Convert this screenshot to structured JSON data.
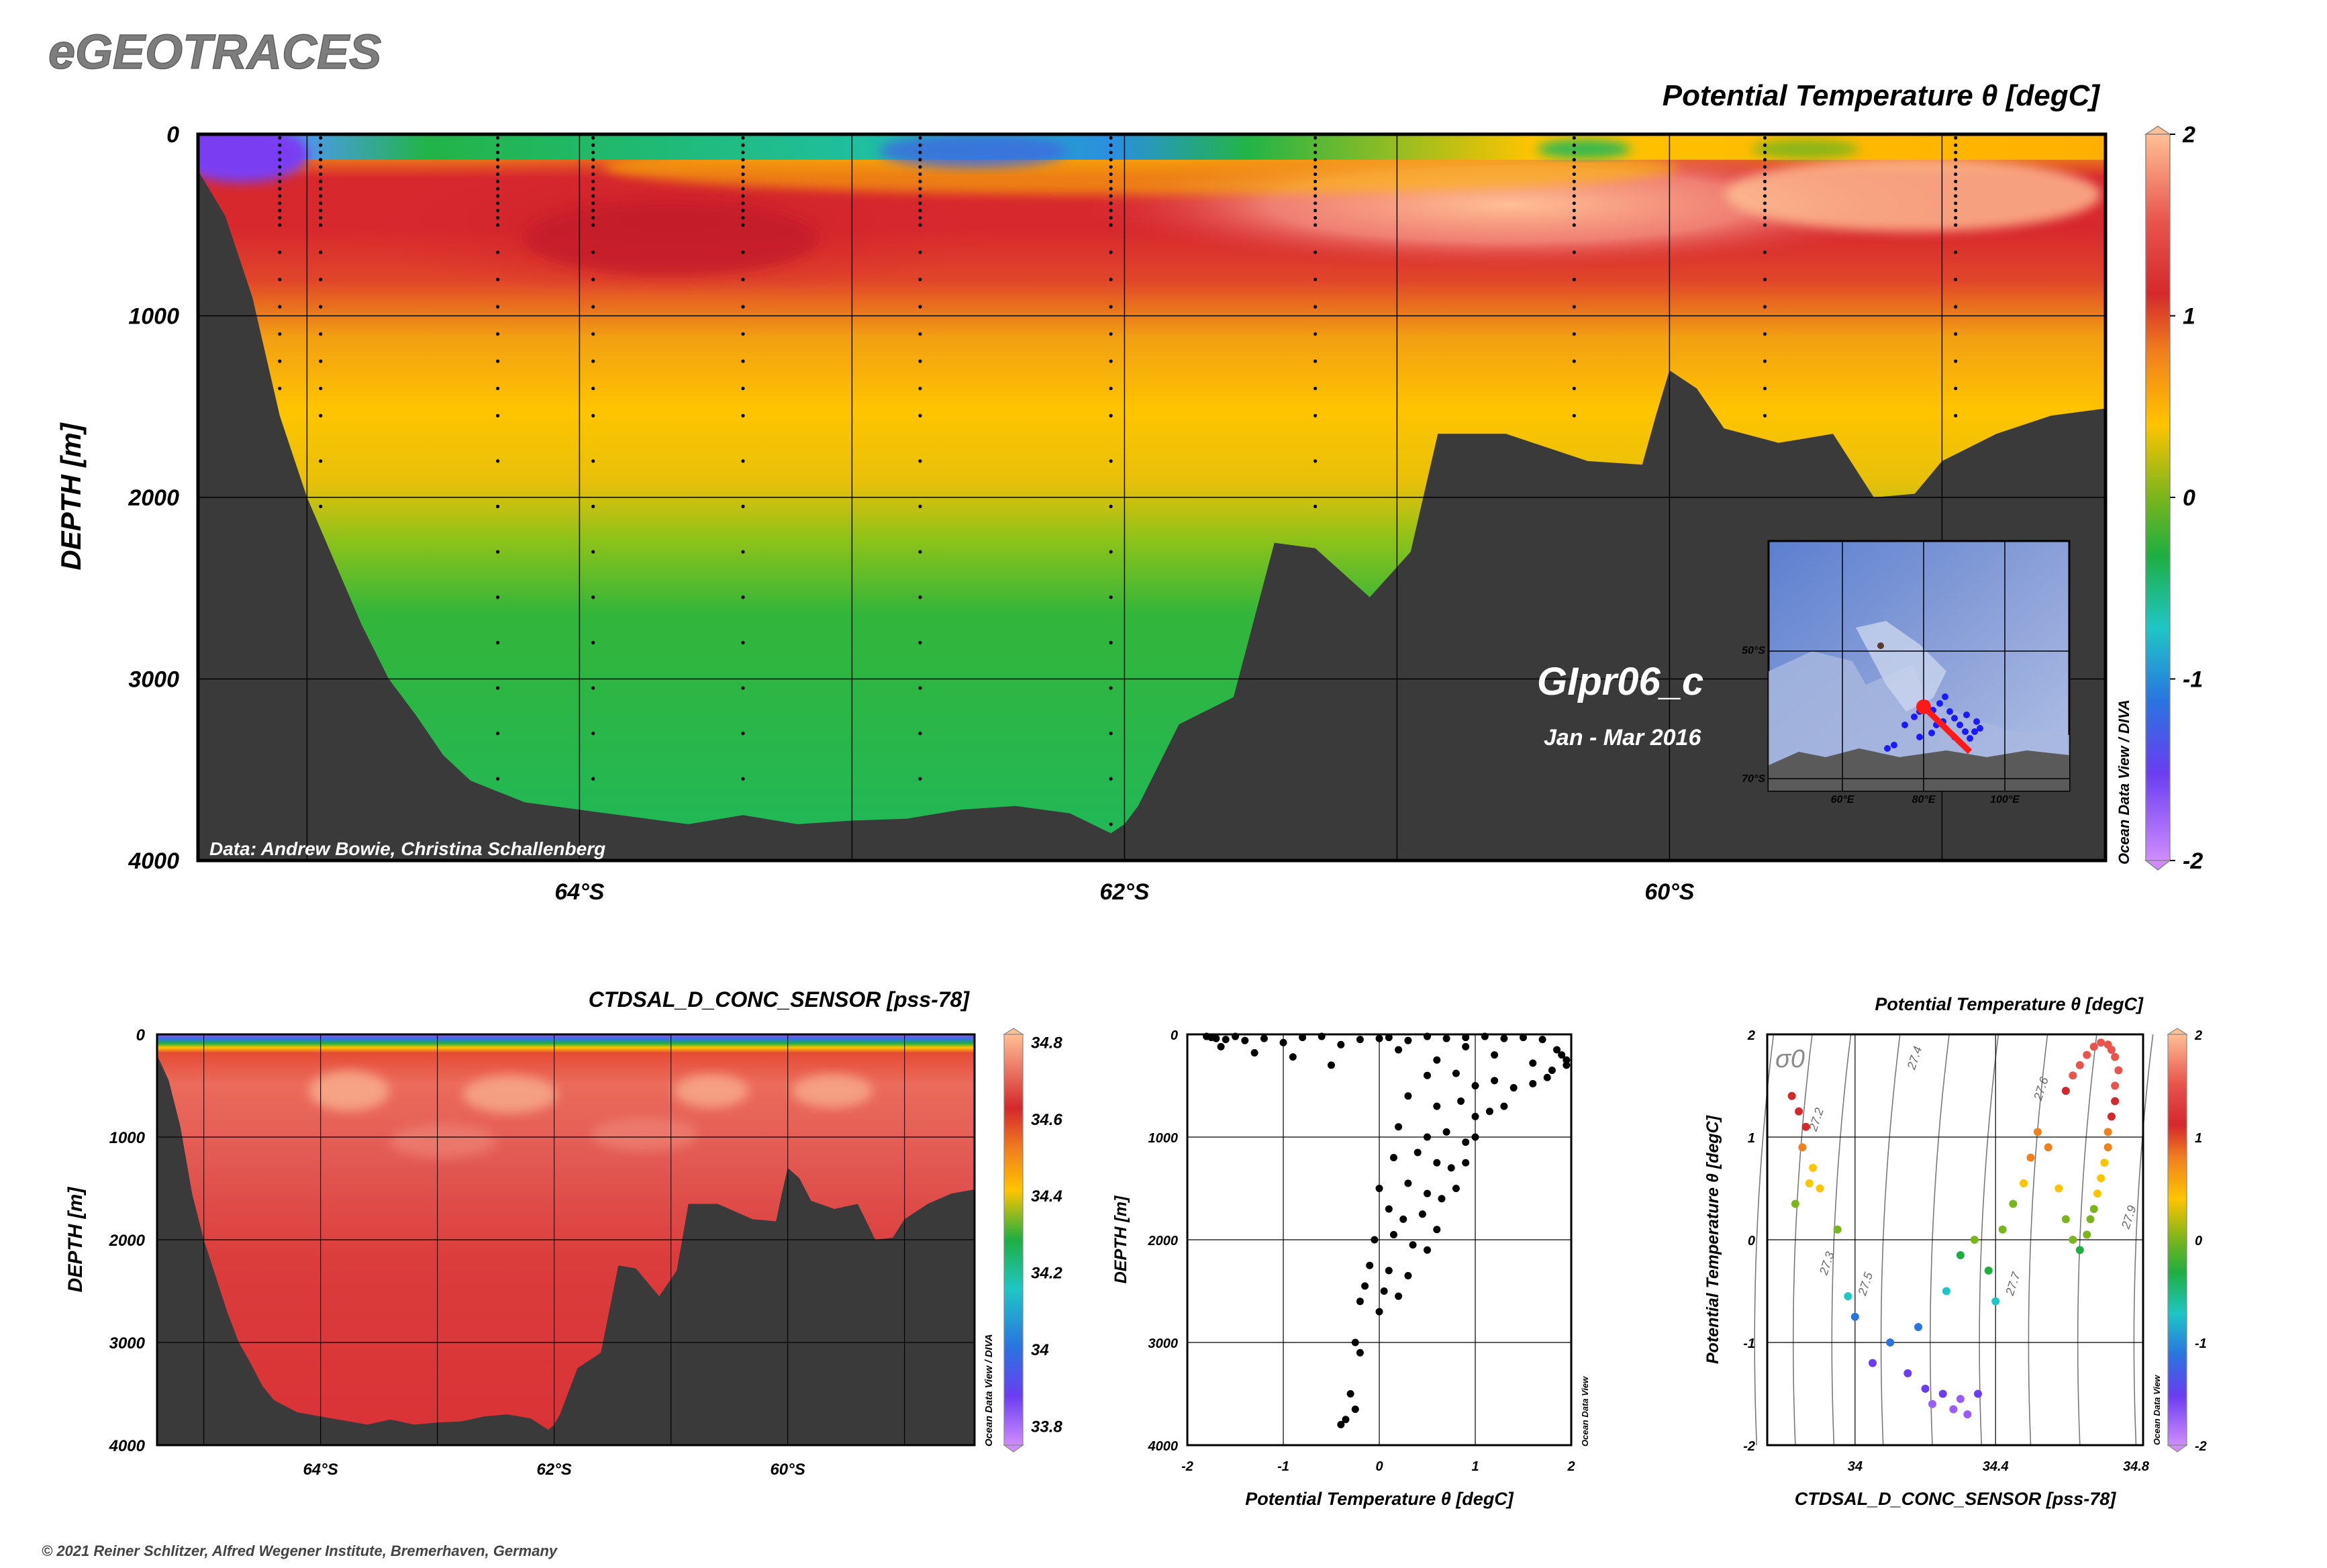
{
  "header": {
    "logo_text": "eGEOTRACES",
    "copyright": "© 2021 Reiner Schlitzer, Alfred Wegener Institute, Bremerhaven, Germany"
  },
  "colors": {
    "background": "#ffffff",
    "bathymetry": "#3a3a3a",
    "profile_points": "#000000",
    "track_red": "#ff1a1a",
    "stations_blue": "#1a1aff",
    "map_water": "#8fa3d6",
    "isopycnal_lines": "#7a7a7a"
  },
  "main_section": {
    "title": "Potential Temperature θ [degC]",
    "ylabel": "DEPTH [m]",
    "cruise_name": "GIpr06_c",
    "cruise_dates": "Jan - Mar 2016",
    "data_credit": "Data: Andrew Bowie, Christina Schallenberg",
    "odv_credit": "Ocean Data View / DIVA",
    "map_labels": {
      "lat_top": "50°S",
      "lat_bottom": "70°S",
      "lon_1": "60°E",
      "lon_2": "80°E",
      "lon_3": "100°E"
    },
    "colorbar": {
      "ticks": [
        "2",
        "1",
        "0",
        "-1",
        "-2"
      ],
      "range": [
        -2,
        2
      ]
    }
  },
  "salinity_section": {
    "title": "CTDSAL_D_CONC_SENSOR [pss-78]",
    "ylabel": "DEPTH [m]",
    "odv_credit": "Ocean Data View / DIVA",
    "colorbar": {
      "ticks": [
        "34.8",
        "34.6",
        "34.4",
        "34.2",
        "34",
        "33.8"
      ],
      "range": [
        33.75,
        34.82
      ]
    }
  },
  "profile_plot": {
    "xlabel": "Potential Temperature θ [degC]",
    "ylabel": "DEPTH [m]",
    "odv_credit": "Ocean Data View"
  },
  "ts_plot": {
    "title": "Potential Temperature θ [degC]",
    "xlabel": "CTDSAL_D_CONC_SENSOR [pss-78]",
    "ylabel": "Potential Temperature θ [degC]",
    "sigma_label": "σ0",
    "odv_credit": "Ocean Data View",
    "colorbar": {
      "ticks": [
        "2",
        "1",
        "0",
        "-1",
        "-2"
      ],
      "range": [
        -2,
        2
      ]
    }
  },
  "chart_data": [
    {
      "type": "heatmap",
      "name": "Potential Temperature section",
      "title": "Potential Temperature θ [degC]",
      "ylabel": "DEPTH [m]",
      "xlabel": "",
      "x_ticks": [
        "64°S",
        "62°S",
        "60°S"
      ],
      "y_ticks": [
        "0",
        "1000",
        "2000",
        "3000",
        "4000"
      ],
      "xlim": [
        65.4,
        58.4
      ],
      "ylim": [
        4000,
        0
      ],
      "value_range": [
        -2,
        2
      ],
      "grid": true,
      "seafloor_depth": {
        "lat": [
          65.4,
          65.3,
          65.2,
          65.1,
          65.0,
          64.9,
          64.8,
          64.7,
          64.6,
          64.5,
          64.4,
          64.3,
          64.2,
          64.0,
          63.8,
          63.6,
          63.4,
          63.2,
          63.0,
          62.8,
          62.6,
          62.4,
          62.2,
          62.05,
          62.0,
          61.95,
          61.8,
          61.6,
          61.45,
          61.3,
          61.1,
          60.95,
          60.85,
          60.6,
          60.3,
          60.1,
          60.05,
          60.0,
          59.9,
          59.8,
          59.6,
          59.4,
          59.25,
          59.1,
          59.0,
          58.8,
          58.6,
          58.4
        ],
        "depth": [
          200,
          450,
          900,
          1550,
          2000,
          2350,
          2700,
          3000,
          3200,
          3420,
          3560,
          3620,
          3680,
          3720,
          3760,
          3800,
          3750,
          3800,
          3780,
          3770,
          3720,
          3700,
          3740,
          3850,
          3800,
          3700,
          3250,
          3100,
          2250,
          2280,
          2550,
          2300,
          1650,
          1650,
          1800,
          1820,
          1550,
          1300,
          1400,
          1620,
          1700,
          1650,
          2000,
          1980,
          1800,
          1650,
          1550,
          1510
        ]
      },
      "station_lats": [
        65.1,
        64.95,
        64.3,
        63.95,
        63.4,
        62.75,
        62.05,
        61.3,
        60.35,
        59.65,
        58.95
      ]
    },
    {
      "type": "heatmap",
      "name": "Salinity section",
      "title": "CTDSAL_D_CONC_SENSOR [pss-78]",
      "ylabel": "DEPTH [m]",
      "xlabel": "",
      "x_ticks": [
        "64°S",
        "62°S",
        "60°S"
      ],
      "y_ticks": [
        "0",
        "1000",
        "2000",
        "3000",
        "4000"
      ],
      "xlim": [
        65.4,
        58.4
      ],
      "ylim": [
        4000,
        0
      ],
      "value_range": [
        33.75,
        34.82
      ],
      "grid": true,
      "description_values": {
        "surface": 33.9,
        "subsurface_max": 34.75,
        "deep": 34.68
      }
    },
    {
      "type": "scatter",
      "name": "Potential temperature vs depth profile",
      "xlabel": "Potential Temperature θ [degC]",
      "ylabel": "DEPTH [m]",
      "xlim": [
        -2,
        2
      ],
      "ylim": [
        4000,
        0
      ],
      "x_ticks": [
        "-2",
        "-1",
        "0",
        "1",
        "2"
      ],
      "y_ticks": [
        "0",
        "1000",
        "2000",
        "3000",
        "4000"
      ],
      "grid": true,
      "x": [
        -1.8,
        -1.75,
        -1.7,
        -1.6,
        -1.5,
        -1.4,
        -1.2,
        -1.0,
        -0.8,
        -0.6,
        -0.4,
        -0.2,
        0.0,
        0.1,
        0.3,
        0.5,
        0.7,
        0.9,
        1.1,
        1.3,
        1.5,
        1.7,
        1.85,
        1.95,
        -1.65,
        -1.3,
        -0.9,
        -0.5,
        0.2,
        0.6,
        0.9,
        1.2,
        1.6,
        1.8,
        1.9,
        1.95,
        0.5,
        0.8,
        1.0,
        1.2,
        1.4,
        1.6,
        1.75,
        0.3,
        0.6,
        0.85,
        1.0,
        1.15,
        1.3,
        0.2,
        0.5,
        0.7,
        0.9,
        1.0,
        0.15,
        0.4,
        0.6,
        0.75,
        0.9,
        0.0,
        0.3,
        0.5,
        0.65,
        0.8,
        0.1,
        0.25,
        0.45,
        0.6,
        -0.05,
        0.15,
        0.35,
        0.5,
        -0.1,
        0.1,
        0.3,
        -0.15,
        0.05,
        0.2,
        -0.2,
        0.0,
        -0.25,
        -0.2,
        -0.3,
        -0.25,
        -0.35,
        -0.4
      ],
      "y": [
        20,
        30,
        40,
        50,
        20,
        60,
        40,
        80,
        30,
        20,
        100,
        50,
        40,
        30,
        60,
        20,
        40,
        30,
        20,
        40,
        30,
        50,
        150,
        250,
        120,
        180,
        220,
        300,
        150,
        250,
        120,
        200,
        280,
        350,
        200,
        300,
        400,
        380,
        500,
        450,
        520,
        480,
        420,
        600,
        700,
        650,
        800,
        750,
        700,
        900,
        1000,
        950,
        1050,
        1000,
        1200,
        1150,
        1250,
        1300,
        1250,
        1500,
        1450,
        1550,
        1600,
        1500,
        1700,
        1800,
        1750,
        1900,
        2000,
        1950,
        2050,
        2100,
        2250,
        2300,
        2350,
        2450,
        2500,
        2550,
        2600,
        2700,
        3000,
        3100,
        3500,
        3650,
        3750,
        3800
      ]
    },
    {
      "type": "scatter",
      "name": "T-S diagram",
      "title": "Potential Temperature θ [degC]",
      "xlabel": "CTDSAL_D_CONC_SENSOR [pss-78]",
      "ylabel": "Potential Temperature θ [degC]",
      "xlim": [
        33.75,
        34.82
      ],
      "ylim": [
        -2,
        2
      ],
      "x_ticks": [
        "34",
        "34.4",
        "34.8"
      ],
      "y_ticks": [
        "2",
        "1",
        "0",
        "-1",
        "-2"
      ],
      "grid": true,
      "isopycnals": [
        "27.2",
        "27.3",
        "27.4",
        "27.5",
        "27.6",
        "27.7",
        "27.9"
      ],
      "x": [
        33.82,
        33.84,
        33.86,
        33.85,
        33.88,
        33.9,
        33.83,
        33.87,
        33.95,
        33.98,
        34.0,
        34.05,
        34.1,
        34.15,
        34.2,
        34.22,
        34.25,
        34.28,
        34.3,
        34.32,
        34.35,
        34.18,
        34.26,
        34.3,
        34.34,
        34.38,
        34.4,
        34.42,
        34.45,
        34.48,
        34.5,
        34.52,
        34.55,
        34.58,
        34.6,
        34.62,
        34.64,
        34.66,
        34.67,
        34.68,
        34.69,
        34.7,
        34.71,
        34.72,
        34.72,
        34.73,
        34.74,
        34.74,
        34.75,
        34.74,
        34.73,
        34.72,
        34.7,
        34.68,
        34.66,
        34.64,
        34.62,
        34.6
      ],
      "y": [
        1.4,
        1.25,
        1.1,
        0.9,
        0.7,
        0.5,
        0.35,
        0.55,
        0.1,
        -0.55,
        -0.75,
        -1.2,
        -1.0,
        -1.3,
        -1.45,
        -1.6,
        -1.5,
        -1.65,
        -1.55,
        -1.7,
        -1.5,
        -0.85,
        -0.5,
        -0.15,
        0.0,
        -0.3,
        -0.6,
        0.1,
        0.35,
        0.55,
        0.8,
        1.05,
        0.9,
        0.5,
        0.2,
        0.0,
        -0.1,
        0.05,
        0.2,
        0.3,
        0.45,
        0.6,
        0.75,
        0.9,
        1.05,
        1.2,
        1.35,
        1.5,
        1.65,
        1.78,
        1.85,
        1.9,
        1.92,
        1.88,
        1.8,
        1.7,
        1.6,
        1.45
      ]
    }
  ]
}
